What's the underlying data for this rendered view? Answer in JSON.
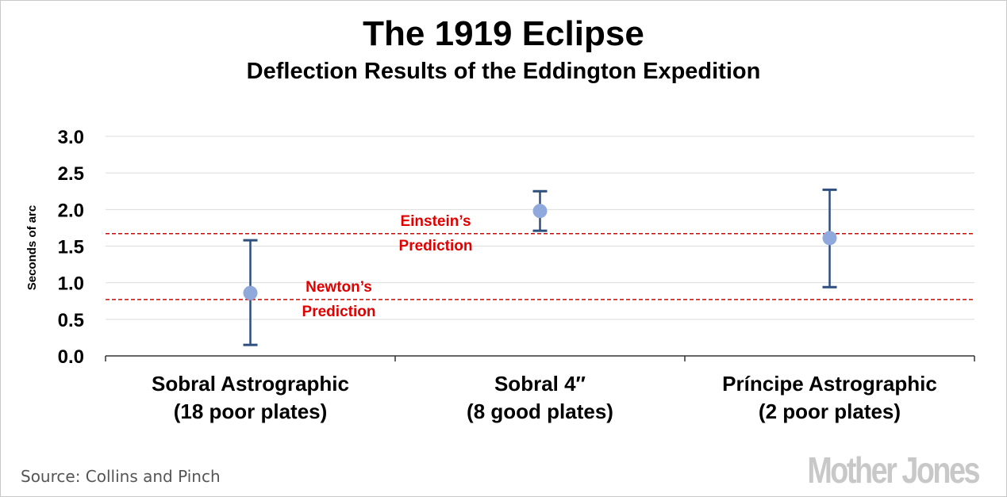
{
  "chart_data": {
    "type": "scatter",
    "title": "The 1919 Eclipse",
    "subtitle": "Deflection Results of the Eddington Expedition",
    "ylabel": "Seconds of arc",
    "ylim": [
      0,
      3
    ],
    "yticks": [
      "0.0",
      "0.5",
      "1.0",
      "1.5",
      "2.0",
      "2.5",
      "3.0"
    ],
    "grid": true,
    "categories": [
      [
        "Sobral Astrographic",
        "(18 poor plates)"
      ],
      [
        "Sobral 4″",
        "(8 good plates)"
      ],
      [
        "Príncipe Astrographic",
        "(2 poor plates)"
      ]
    ],
    "values": [
      0.86,
      1.98,
      1.61
    ],
    "error_low": [
      0.15,
      1.71,
      0.94
    ],
    "error_high": [
      1.58,
      2.25,
      2.27
    ],
    "reference_lines": [
      {
        "value": 1.67,
        "label": [
          "Einstein’s",
          "Prediction"
        ]
      },
      {
        "value": 0.77,
        "label": [
          "Newton’s",
          "Prediction"
        ]
      }
    ],
    "colors": {
      "point": "#8fa9dc",
      "error_bar": "#2e4f7e",
      "prediction": "#e00000",
      "grid": "#dcdcdc"
    }
  },
  "source": "Source: Collins and Pinch",
  "logo": "Mother Jones"
}
